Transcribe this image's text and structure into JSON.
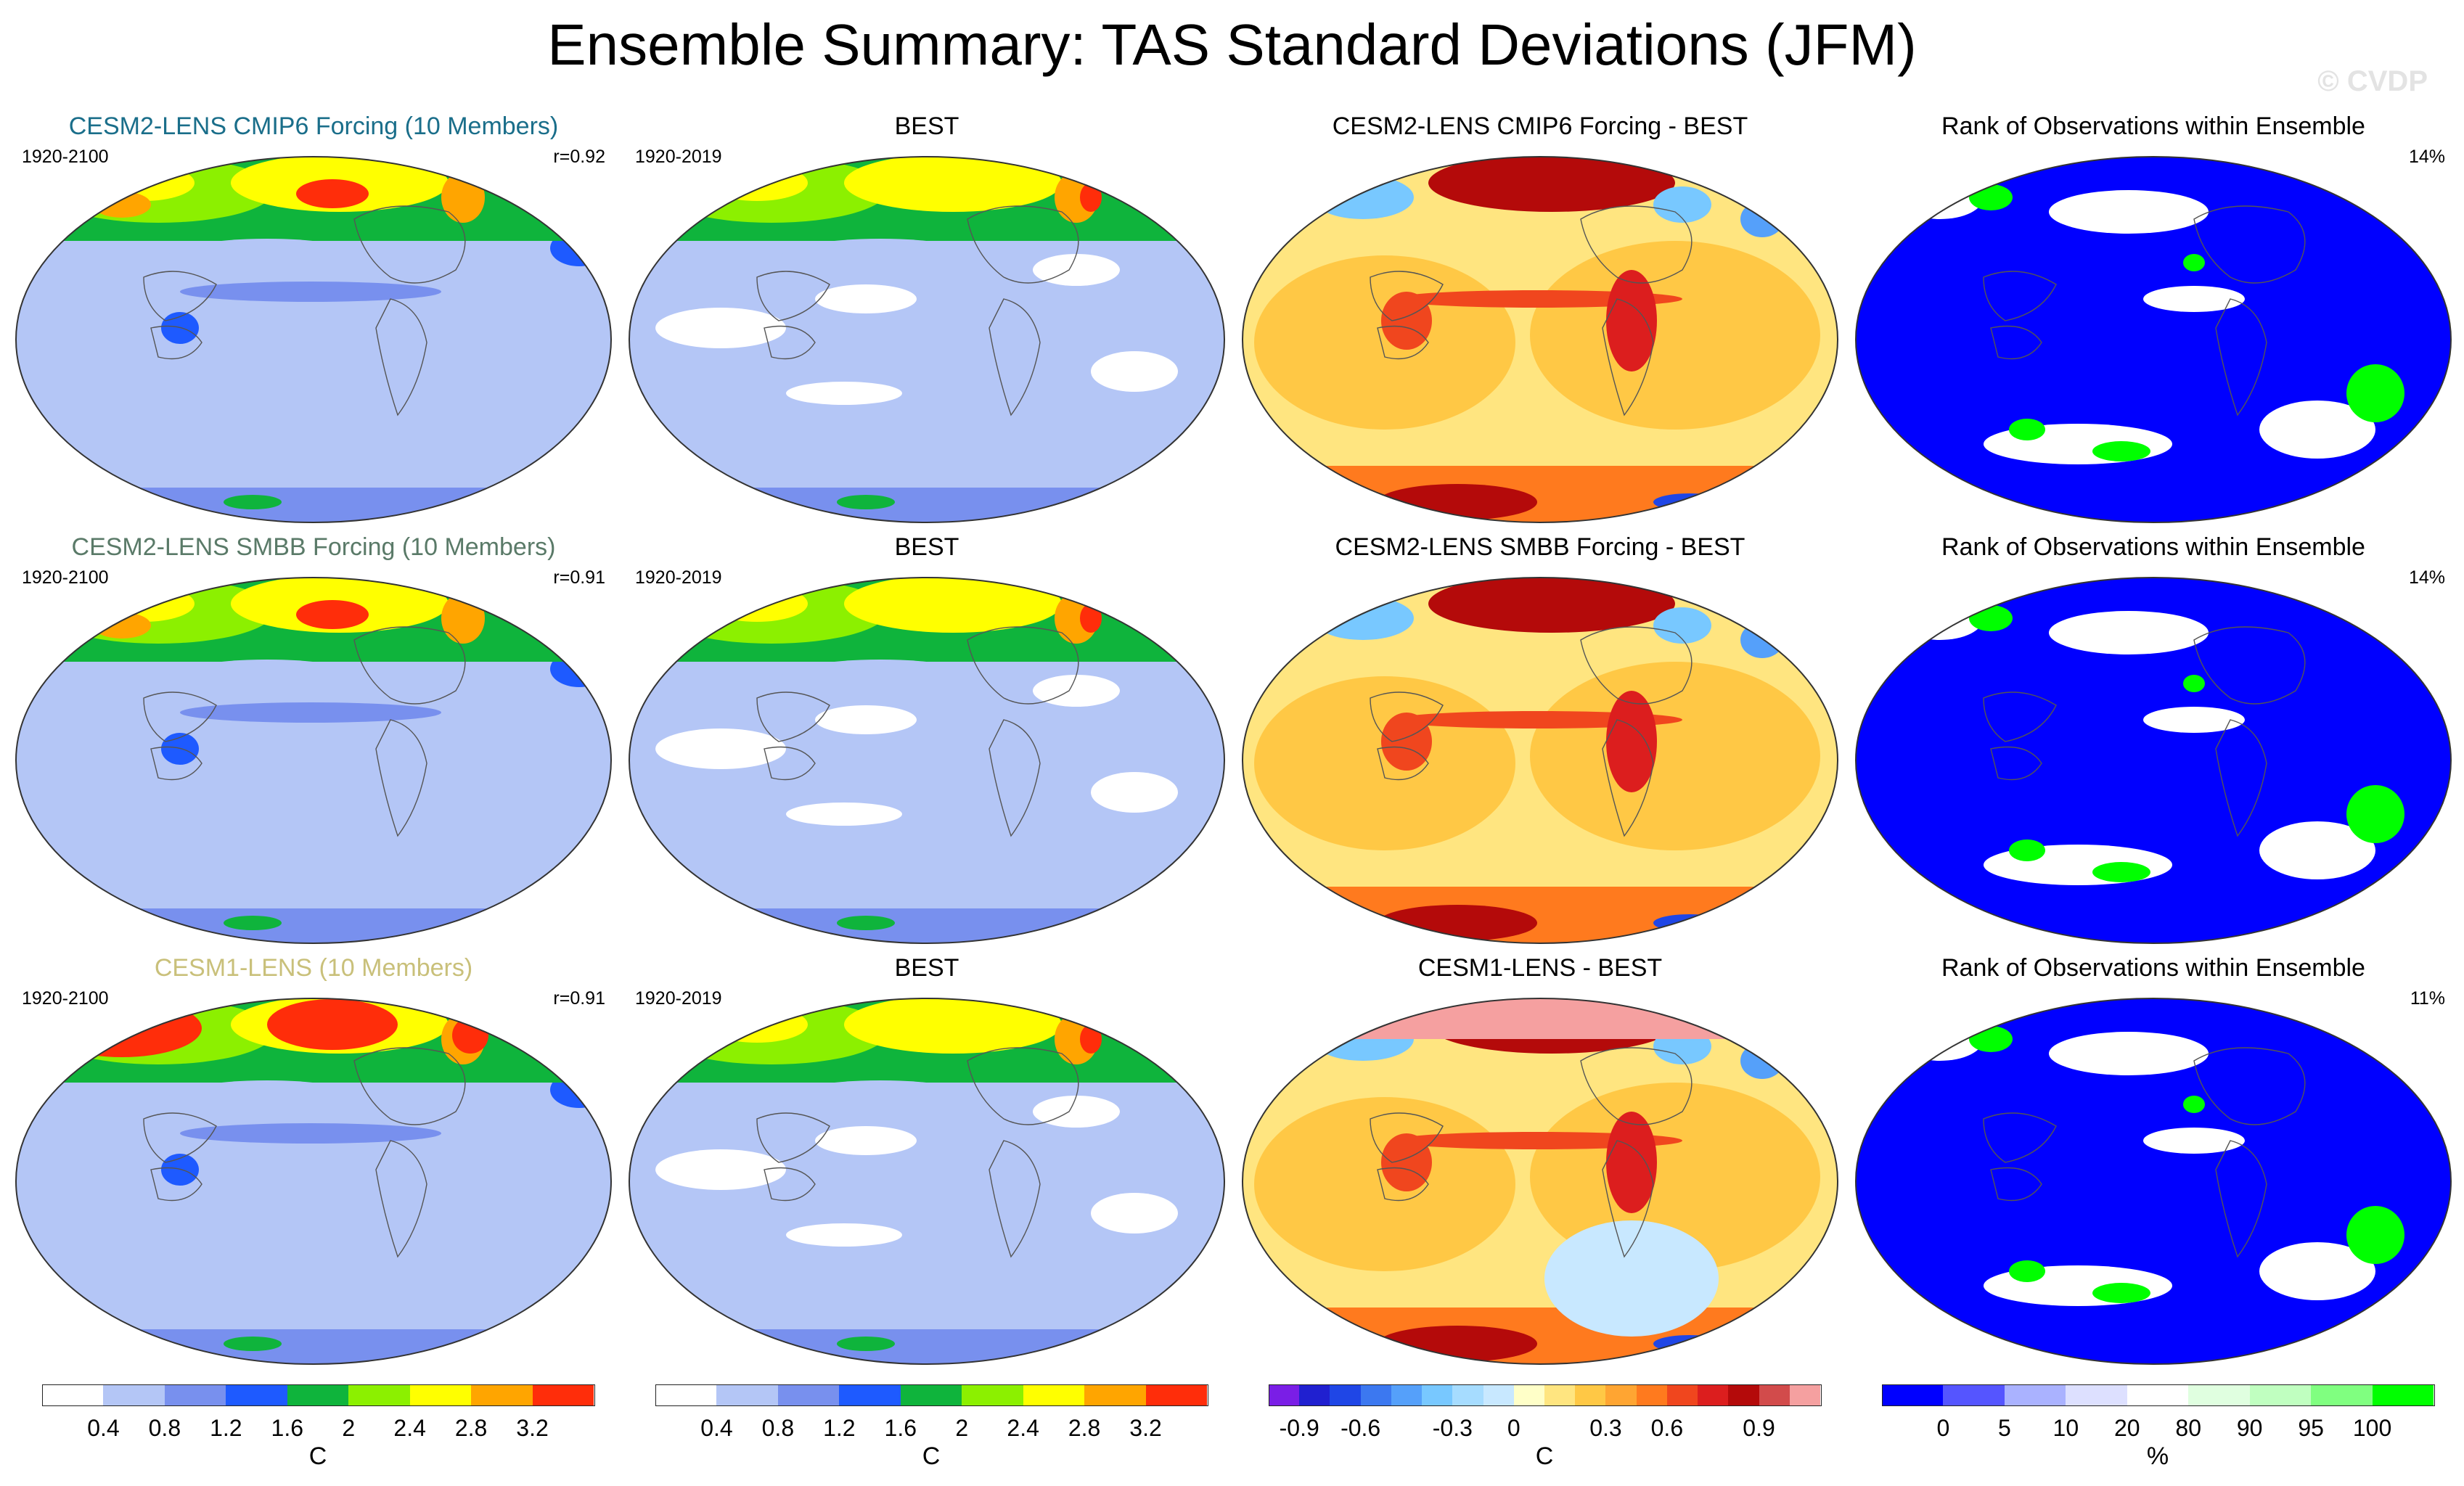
{
  "title": "Ensemble Summary: TAS Standard Deviations (JFM)",
  "watermark": "© CVDP",
  "colors": {
    "title_cmip6": "#1a6e8a",
    "title_smbb": "#5a7a68",
    "title_lens1": "#c9c07a",
    "ocean_sd": "#b4c6f6",
    "land_outline": "#555555"
  },
  "colorbars": {
    "sd": {
      "colors": [
        "#ffffff",
        "#b4c6f6",
        "#7890ee",
        "#1e5aff",
        "#0fb43c",
        "#8cf000",
        "#ffff00",
        "#ffa500",
        "#ff2d0a"
      ],
      "ticks": [
        "0.4",
        "0.8",
        "1.2",
        "1.6",
        "2",
        "2.4",
        "2.8",
        "3.2"
      ],
      "unit": "C"
    },
    "diff": {
      "colors": [
        "#7a1ee6",
        "#2020d0",
        "#1f46e6",
        "#3c78f0",
        "#55a0fa",
        "#78c8ff",
        "#a6dcff",
        "#c8e8ff",
        "#ffffc8",
        "#ffe580",
        "#ffc845",
        "#ffa532",
        "#ff7a1e",
        "#f0461e",
        "#dc1e1e",
        "#b40a0a",
        "#d24b4b",
        "#f5a0a0"
      ],
      "ticks": [
        "-0.9",
        "-0.6",
        "-0.3",
        "0",
        "0.3",
        "0.6",
        "0.9"
      ],
      "unit": "C"
    },
    "rank": {
      "colors": [
        "#0000ff",
        "#5555ff",
        "#aab2ff",
        "#dde0ff",
        "#ffffff",
        "#e0ffe0",
        "#c0ffc0",
        "#80ff80",
        "#00ff00"
      ],
      "ticks": [
        "0",
        "5",
        "10",
        "20",
        "80",
        "90",
        "95",
        "100"
      ],
      "unit": "%"
    }
  },
  "rows": [
    {
      "model": {
        "title": "CESM2-LENS CMIP6 Forcing (10 Members)",
        "years": "1920-2100",
        "r": "r=0.92",
        "scheme": "model"
      },
      "obs": {
        "title": "BEST",
        "years": "1920-2019",
        "scheme": "obs"
      },
      "diff": {
        "title": "CESM2-LENS CMIP6 Forcing - BEST"
      },
      "rank": {
        "title": "Rank of Observations within Ensemble",
        "pct": "14%"
      }
    },
    {
      "model": {
        "title": "CESM2-LENS SMBB Forcing (10 Members)",
        "years": "1920-2100",
        "r": "r=0.91",
        "scheme": "model"
      },
      "obs": {
        "title": "BEST",
        "years": "1920-2019",
        "scheme": "obs"
      },
      "diff": {
        "title": "CESM2-LENS SMBB Forcing - BEST"
      },
      "rank": {
        "title": "Rank of Observations within Ensemble",
        "pct": "14%"
      }
    },
    {
      "model": {
        "title": "CESM1-LENS (10 Members)",
        "years": "1920-2100",
        "r": "r=0.91",
        "scheme": "model_hot"
      },
      "obs": {
        "title": "BEST",
        "years": "1920-2019",
        "scheme": "obs"
      },
      "diff": {
        "title": "CESM1-LENS - BEST"
      },
      "rank": {
        "title": "Rank of Observations within Ensemble",
        "pct": "11%"
      }
    }
  ],
  "chart_data": {
    "type": "heatmap",
    "title": "Ensemble Summary: TAS Standard Deviations (JFM)",
    "variable": "TAS standard deviation",
    "season": "JFM",
    "panels": [
      {
        "row": 1,
        "col": 1,
        "title": "CESM2-LENS CMIP6 Forcing (10 Members)",
        "period": "1920-2100",
        "pattern_correlation": 0.92,
        "unit": "C"
      },
      {
        "row": 1,
        "col": 2,
        "title": "BEST",
        "period": "1920-2019",
        "unit": "C"
      },
      {
        "row": 1,
        "col": 3,
        "title": "CESM2-LENS CMIP6 Forcing - BEST",
        "unit": "C"
      },
      {
        "row": 1,
        "col": 4,
        "title": "Rank of Observations within Ensemble",
        "percent": 14,
        "unit": "%"
      },
      {
        "row": 2,
        "col": 1,
        "title": "CESM2-LENS SMBB Forcing (10 Members)",
        "period": "1920-2100",
        "pattern_correlation": 0.91,
        "unit": "C"
      },
      {
        "row": 2,
        "col": 2,
        "title": "BEST",
        "period": "1920-2019",
        "unit": "C"
      },
      {
        "row": 2,
        "col": 3,
        "title": "CESM2-LENS SMBB Forcing - BEST",
        "unit": "C"
      },
      {
        "row": 2,
        "col": 4,
        "title": "Rank of Observations within Ensemble",
        "percent": 14,
        "unit": "%"
      },
      {
        "row": 3,
        "col": 1,
        "title": "CESM1-LENS (10 Members)",
        "period": "1920-2100",
        "pattern_correlation": 0.91,
        "unit": "C"
      },
      {
        "row": 3,
        "col": 2,
        "title": "BEST",
        "period": "1920-2019",
        "unit": "C"
      },
      {
        "row": 3,
        "col": 3,
        "title": "CESM1-LENS - BEST",
        "unit": "C"
      },
      {
        "row": 3,
        "col": 4,
        "title": "Rank of Observations within Ensemble",
        "percent": 11,
        "unit": "%"
      }
    ],
    "colorbars": [
      {
        "name": "standard deviation",
        "levels": [
          0.4,
          0.8,
          1.2,
          1.6,
          2,
          2.4,
          2.8,
          3.2
        ],
        "unit": "C"
      },
      {
        "name": "difference",
        "levels": [
          -0.9,
          -0.6,
          -0.3,
          0,
          0.3,
          0.6,
          0.9
        ],
        "unit": "C"
      },
      {
        "name": "rank",
        "levels": [
          0,
          5,
          10,
          20,
          80,
          90,
          95,
          100
        ],
        "unit": "%"
      }
    ]
  }
}
